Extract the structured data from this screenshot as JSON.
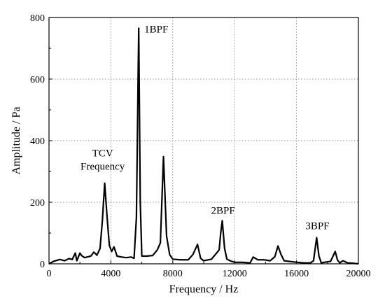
{
  "chart_data": {
    "type": "line",
    "xlabel": "Frequency / Hz",
    "ylabel": "Amplitude / Pa",
    "xlim": [
      0,
      20000
    ],
    "ylim": [
      0,
      800
    ],
    "grid": true,
    "x_ticks": [
      0,
      4000,
      8000,
      12000,
      16000,
      20000
    ],
    "y_ticks": [
      0,
      200,
      400,
      600,
      800
    ],
    "x_tick_labels": [
      "0",
      "4000",
      "8000",
      "12000",
      "16000",
      "20000"
    ],
    "y_tick_labels": [
      "0",
      "200",
      "400",
      "600",
      "800"
    ],
    "series": [
      {
        "color": "#000000",
        "x": [
          0,
          300,
          700,
          1000,
          1300,
          1500,
          1700,
          1800,
          2000,
          2100,
          2300,
          2700,
          2900,
          3100,
          3300,
          3450,
          3600,
          3750,
          3900,
          4050,
          4200,
          4300,
          4400,
          4700,
          5000,
          5300,
          5500,
          5650,
          5800,
          5900,
          6000,
          6300,
          6700,
          7000,
          7200,
          7400,
          7600,
          7800,
          8000,
          8500,
          9000,
          9300,
          9600,
          9800,
          10000,
          10500,
          11000,
          11100,
          11200,
          11350,
          11500,
          11800,
          12000,
          12500,
          13000,
          13200,
          13500,
          13900,
          14300,
          14600,
          14800,
          15000,
          15200,
          15500,
          16000,
          16500,
          16900,
          17100,
          17300,
          17450,
          17600,
          17800,
          18200,
          18500,
          18650,
          18800,
          19000,
          19300,
          19600,
          20000
        ],
        "values": [
          0,
          8,
          14,
          10,
          17,
          14,
          35,
          10,
          35,
          27,
          20,
          25,
          38,
          28,
          50,
          140,
          262,
          155,
          60,
          40,
          55,
          40,
          25,
          22,
          20,
          22,
          18,
          150,
          765,
          200,
          25,
          25,
          27,
          45,
          68,
          348,
          90,
          30,
          15,
          13,
          13,
          30,
          63,
          18,
          10,
          15,
          45,
          100,
          140,
          50,
          15,
          8,
          5,
          5,
          3,
          22,
          13,
          13,
          10,
          23,
          58,
          30,
          10,
          8,
          5,
          3,
          3,
          10,
          85,
          25,
          3,
          5,
          8,
          40,
          12,
          3,
          10,
          3,
          2,
          0
        ]
      }
    ],
    "annotations": [
      {
        "lines": [
          "1BPF"
        ],
        "x": 5800,
        "y": 765
      },
      {
        "lines": [
          "TCV",
          "Frequency"
        ],
        "x": 3650,
        "y": 262
      },
      {
        "lines": [
          "2BPF"
        ],
        "x": 11250,
        "y": 140
      },
      {
        "lines": [
          "3BPF"
        ],
        "x": 17350,
        "y": 85
      }
    ]
  }
}
